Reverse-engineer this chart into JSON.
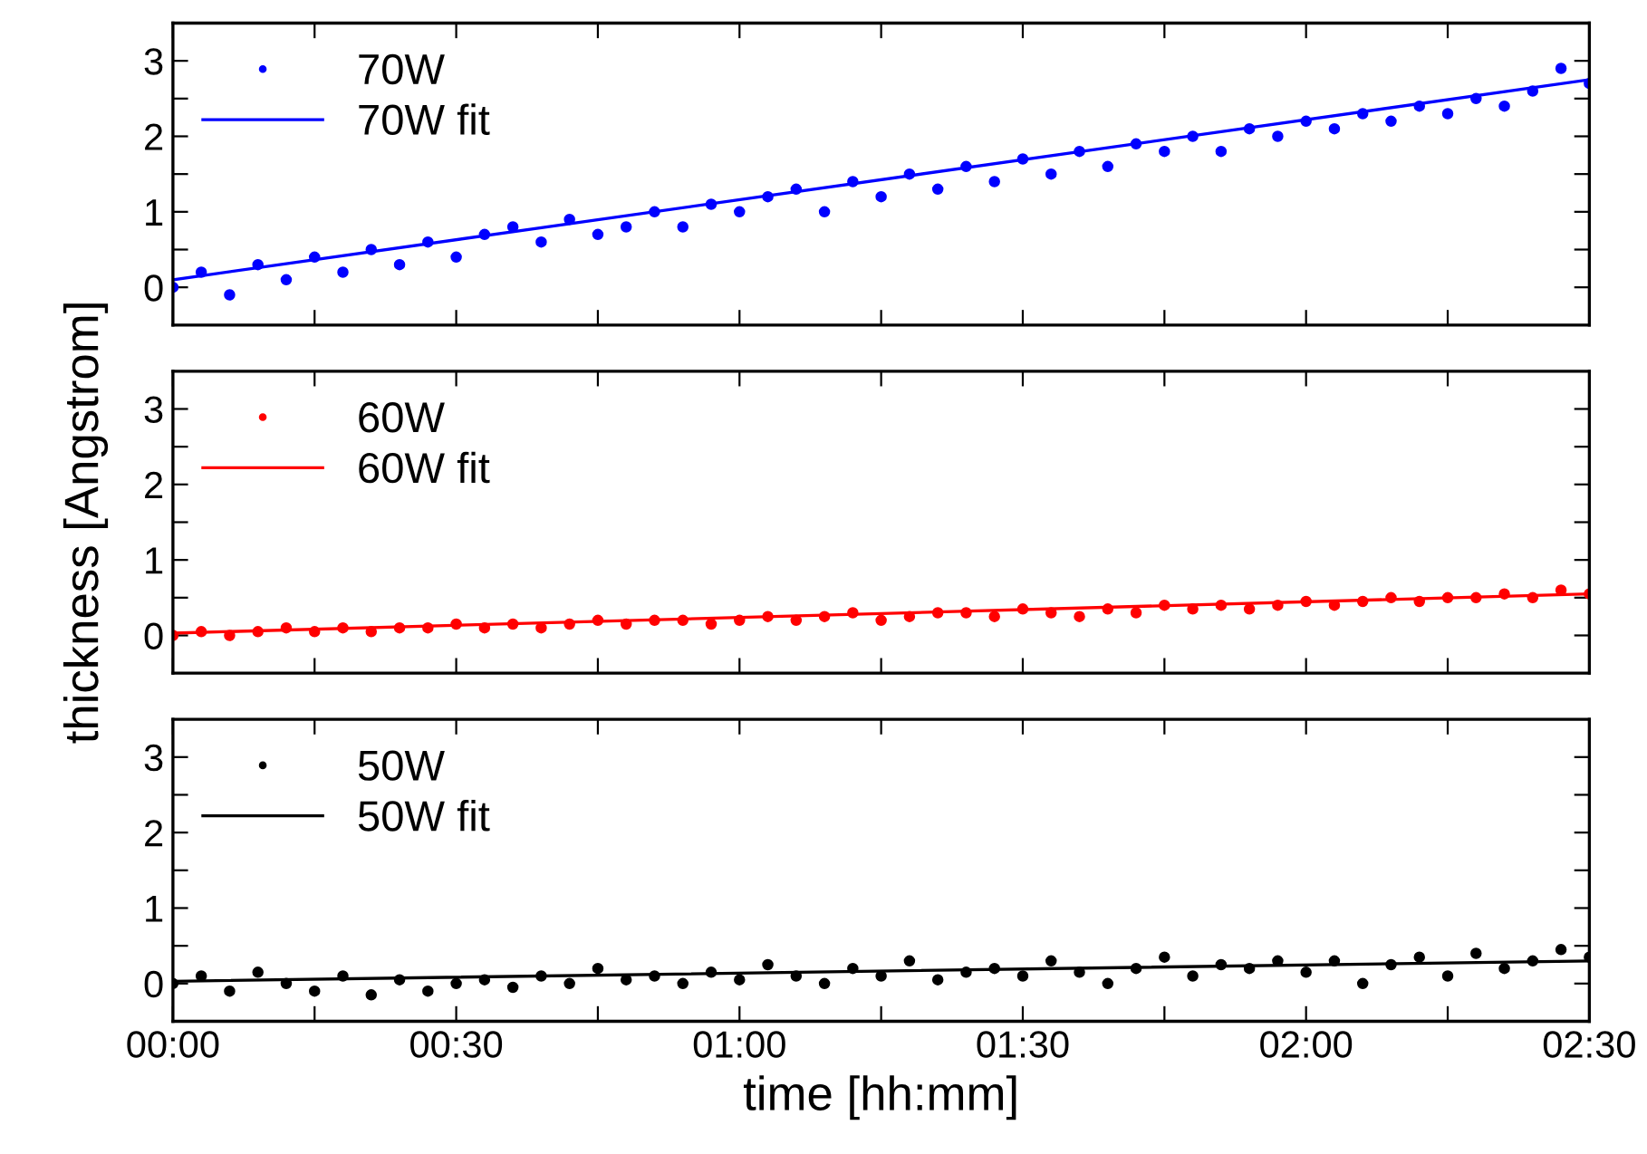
{
  "chart_data": [
    {
      "type": "scatter",
      "legend": "top left",
      "tick_labels": "y",
      "xlim": [
        0,
        2.5
      ],
      "ylim": [
        -0.5,
        3.5
      ],
      "xticks": [
        {
          "value": 0,
          "label": null
        },
        {
          "value": 0.25,
          "label": null
        },
        {
          "value": 0.5,
          "label": null
        },
        {
          "value": 0.75,
          "label": null
        },
        {
          "value": 1,
          "label": null
        },
        {
          "value": 1.25,
          "label": null
        },
        {
          "value": 1.5,
          "label": null
        },
        {
          "value": 1.75,
          "label": null
        },
        {
          "value": 2,
          "label": null
        },
        {
          "value": 2.25,
          "label": null
        },
        {
          "value": 2.5,
          "label": null
        }
      ],
      "yticks": [
        0,
        {
          "value": 0.5,
          "label": null
        },
        1,
        {
          "value": 1.5,
          "label": null
        },
        2,
        {
          "value": 2.5,
          "label": null
        },
        3
      ],
      "series": [
        {
          "name": "70W",
          "marker": "circle",
          "color": "#0000ff",
          "x": [
            0,
            0.05,
            0.1,
            0.15,
            0.2,
            0.25,
            0.3,
            0.35,
            0.4,
            0.45,
            0.5,
            0.55,
            0.6,
            0.65,
            0.7,
            0.75,
            0.8,
            0.85,
            0.9,
            0.95,
            1,
            1.05,
            1.1,
            1.15,
            1.2,
            1.25,
            1.3,
            1.35,
            1.4,
            1.45,
            1.5,
            1.55,
            1.6,
            1.65,
            1.7,
            1.75,
            1.8,
            1.85,
            1.9,
            1.95,
            2,
            2.05,
            2.1,
            2.15,
            2.2,
            2.25,
            2.3,
            2.35,
            2.4,
            2.45,
            2.5
          ],
          "values": [
            0.0,
            0.2,
            -0.1,
            0.3,
            0.1,
            0.4,
            0.2,
            0.5,
            0.3,
            0.6,
            0.4,
            0.7,
            0.8,
            0.6,
            0.9,
            0.7,
            0.8,
            1.0,
            0.8,
            1.1,
            1.0,
            1.2,
            1.3,
            1.0,
            1.4,
            1.2,
            1.5,
            1.3,
            1.6,
            1.4,
            1.7,
            1.5,
            1.8,
            1.6,
            1.9,
            1.8,
            2.0,
            1.8,
            2.1,
            2.0,
            2.2,
            2.1,
            2.3,
            2.2,
            2.4,
            2.3,
            2.5,
            2.4,
            2.6,
            2.9,
            2.7
          ]
        },
        {
          "name": "70W fit",
          "type": "line",
          "line_style": "solid",
          "color": "#0000ff",
          "x": [
            0,
            2.5
          ],
          "values": [
            0.1,
            2.75
          ]
        }
      ]
    },
    {
      "type": "scatter",
      "legend": "top left",
      "tick_labels": "y",
      "ylabel": "thickness [Angstrom]",
      "xlim": [
        0,
        2.5
      ],
      "ylim": [
        -0.5,
        3.5
      ],
      "xticks": [
        {
          "value": 0,
          "label": null
        },
        {
          "value": 0.25,
          "label": null
        },
        {
          "value": 0.5,
          "label": null
        },
        {
          "value": 0.75,
          "label": null
        },
        {
          "value": 1,
          "label": null
        },
        {
          "value": 1.25,
          "label": null
        },
        {
          "value": 1.5,
          "label": null
        },
        {
          "value": 1.75,
          "label": null
        },
        {
          "value": 2,
          "label": null
        },
        {
          "value": 2.25,
          "label": null
        },
        {
          "value": 2.5,
          "label": null
        }
      ],
      "yticks": [
        0,
        {
          "value": 0.5,
          "label": null
        },
        1,
        {
          "value": 1.5,
          "label": null
        },
        2,
        {
          "value": 2.5,
          "label": null
        },
        3
      ],
      "series": [
        {
          "name": "60W",
          "marker": "circle",
          "color": "#ff0000",
          "x": [
            0,
            0.05,
            0.1,
            0.15,
            0.2,
            0.25,
            0.3,
            0.35,
            0.4,
            0.45,
            0.5,
            0.55,
            0.6,
            0.65,
            0.7,
            0.75,
            0.8,
            0.85,
            0.9,
            0.95,
            1,
            1.05,
            1.1,
            1.15,
            1.2,
            1.25,
            1.3,
            1.35,
            1.4,
            1.45,
            1.5,
            1.55,
            1.6,
            1.65,
            1.7,
            1.75,
            1.8,
            1.85,
            1.9,
            1.95,
            2,
            2.05,
            2.1,
            2.15,
            2.2,
            2.25,
            2.3,
            2.35,
            2.4,
            2.45,
            2.5
          ],
          "values": [
            0.0,
            0.05,
            0.0,
            0.05,
            0.1,
            0.05,
            0.1,
            0.05,
            0.1,
            0.1,
            0.15,
            0.1,
            0.15,
            0.1,
            0.15,
            0.2,
            0.15,
            0.2,
            0.2,
            0.15,
            0.2,
            0.25,
            0.2,
            0.25,
            0.3,
            0.2,
            0.25,
            0.3,
            0.3,
            0.25,
            0.35,
            0.3,
            0.25,
            0.35,
            0.3,
            0.4,
            0.35,
            0.4,
            0.35,
            0.4,
            0.45,
            0.4,
            0.45,
            0.5,
            0.45,
            0.5,
            0.5,
            0.55,
            0.5,
            0.6,
            0.55
          ]
        },
        {
          "name": "60W fit",
          "type": "line",
          "line_style": "solid",
          "color": "#ff0000",
          "x": [
            0,
            2.5
          ],
          "values": [
            0.03,
            0.55
          ]
        }
      ]
    },
    {
      "type": "scatter",
      "legend": "top left",
      "xlabel": "time [hh:mm]",
      "xlim": [
        0,
        2.5
      ],
      "ylim": [
        -0.5,
        3.5
      ],
      "xticks": [
        {
          "value": 0,
          "label": "00:00"
        },
        {
          "value": 0.25,
          "label": null
        },
        {
          "value": 0.5,
          "label": "00:30"
        },
        {
          "value": 0.75,
          "label": null
        },
        {
          "value": 1,
          "label": "01:00"
        },
        {
          "value": 1.25,
          "label": null
        },
        {
          "value": 1.5,
          "label": "01:30"
        },
        {
          "value": 1.75,
          "label": null
        },
        {
          "value": 2,
          "label": "02:00"
        },
        {
          "value": 2.25,
          "label": null
        },
        {
          "value": 2.5,
          "label": "02:30"
        }
      ],
      "yticks": [
        0,
        {
          "value": 0.5,
          "label": null
        },
        1,
        {
          "value": 1.5,
          "label": null
        },
        2,
        {
          "value": 2.5,
          "label": null
        },
        3
      ],
      "series": [
        {
          "name": "50W",
          "marker": "circle",
          "color": "#000000",
          "x": [
            0,
            0.05,
            0.1,
            0.15,
            0.2,
            0.25,
            0.3,
            0.35,
            0.4,
            0.45,
            0.5,
            0.55,
            0.6,
            0.65,
            0.7,
            0.75,
            0.8,
            0.85,
            0.9,
            0.95,
            1,
            1.05,
            1.1,
            1.15,
            1.2,
            1.25,
            1.3,
            1.35,
            1.4,
            1.45,
            1.5,
            1.55,
            1.6,
            1.65,
            1.7,
            1.75,
            1.8,
            1.85,
            1.9,
            1.95,
            2,
            2.05,
            2.1,
            2.15,
            2.2,
            2.25,
            2.3,
            2.35,
            2.4,
            2.45,
            2.5
          ],
          "values": [
            0.0,
            0.1,
            -0.1,
            0.15,
            0.0,
            -0.1,
            0.1,
            -0.15,
            0.05,
            -0.1,
            0.0,
            0.05,
            -0.05,
            0.1,
            0.0,
            0.2,
            0.05,
            0.1,
            0.0,
            0.15,
            0.05,
            0.25,
            0.1,
            0.0,
            0.2,
            0.1,
            0.3,
            0.05,
            0.15,
            0.2,
            0.1,
            0.3,
            0.15,
            0.0,
            0.2,
            0.35,
            0.1,
            0.25,
            0.2,
            0.3,
            0.15,
            0.3,
            0.0,
            0.25,
            0.35,
            0.1,
            0.4,
            0.2,
            0.3,
            0.45,
            0.35
          ]
        },
        {
          "name": "50W fit",
          "type": "line",
          "line_style": "solid",
          "color": "#000000",
          "x": [
            0,
            2.5
          ],
          "values": [
            0.03,
            0.3
          ]
        }
      ]
    }
  ]
}
